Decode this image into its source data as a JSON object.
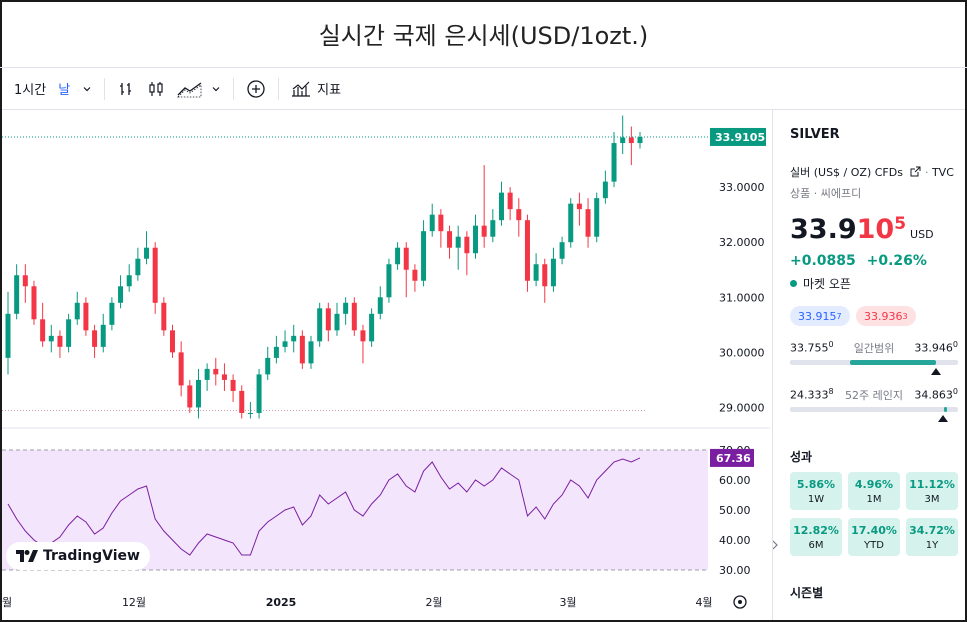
{
  "page_title": "실시간 국제 은시세(USD/1ozt.)",
  "toolbar": {
    "interval": "1시간",
    "timeframe": "날",
    "indicators_label": "지표"
  },
  "chart_labels": {
    "last_price_tag": "33.9105",
    "rsi_tag": "67.36",
    "x_ticks": [
      "월",
      "12월",
      "2025",
      "2월",
      "3월",
      "4월"
    ],
    "y_ticks": [
      "33.0000",
      "32.0000",
      "31.0000",
      "30.0000",
      "29.0000"
    ],
    "rsi_ticks": [
      "70.00",
      "60.00",
      "50.00",
      "40.00",
      "30.00"
    ],
    "watermark": "TradingView"
  },
  "colors": {
    "up": "#089981",
    "down": "#f23645",
    "rsi_line": "#7b1fa2",
    "rsi_band": "#f3e5fb",
    "accent": "#2962ff"
  },
  "chart_data": {
    "type": "candlestick",
    "ylim": [
      28.5,
      34.4
    ],
    "rsi_ylim": [
      28,
      72
    ],
    "candles": [
      [
        29.9,
        30.7,
        31.1,
        29.6
      ],
      [
        30.7,
        31.4,
        31.6,
        30.6
      ],
      [
        31.4,
        31.2,
        31.6,
        30.9
      ],
      [
        31.2,
        30.6,
        31.3,
        30.5
      ],
      [
        30.6,
        30.2,
        30.9,
        30.1
      ],
      [
        30.2,
        30.3,
        30.5,
        30.0
      ],
      [
        30.3,
        30.1,
        30.4,
        29.9
      ],
      [
        30.1,
        30.6,
        30.7,
        30.0
      ],
      [
        30.6,
        30.9,
        31.1,
        30.5
      ],
      [
        30.9,
        30.4,
        31.0,
        30.3
      ],
      [
        30.4,
        30.1,
        30.5,
        29.9
      ],
      [
        30.1,
        30.5,
        30.7,
        30.0
      ],
      [
        30.5,
        30.9,
        31.0,
        30.4
      ],
      [
        30.9,
        31.2,
        31.4,
        30.8
      ],
      [
        31.2,
        31.4,
        31.6,
        31.1
      ],
      [
        31.4,
        31.7,
        31.9,
        31.3
      ],
      [
        31.7,
        31.9,
        32.2,
        31.6
      ],
      [
        31.9,
        30.9,
        32.0,
        30.7
      ],
      [
        30.9,
        30.4,
        31.0,
        30.3
      ],
      [
        30.4,
        30.0,
        30.5,
        29.9
      ],
      [
        30.0,
        29.4,
        30.2,
        29.2
      ],
      [
        29.4,
        29.0,
        29.5,
        28.9
      ],
      [
        29.0,
        29.5,
        29.7,
        28.8
      ],
      [
        29.5,
        29.7,
        29.8,
        29.3
      ],
      [
        29.7,
        29.6,
        29.9,
        29.4
      ],
      [
        29.6,
        29.5,
        29.8,
        29.3
      ],
      [
        29.5,
        29.3,
        29.6,
        29.1
      ],
      [
        29.3,
        28.9,
        29.4,
        28.8
      ],
      [
        28.9,
        28.9,
        29.1,
        28.8
      ],
      [
        28.9,
        29.6,
        29.7,
        28.8
      ],
      [
        29.6,
        29.9,
        30.1,
        29.5
      ],
      [
        29.9,
        30.1,
        30.3,
        29.8
      ],
      [
        30.1,
        30.2,
        30.4,
        30.0
      ],
      [
        30.2,
        30.3,
        30.5,
        30.0
      ],
      [
        30.3,
        29.8,
        30.4,
        29.7
      ],
      [
        29.8,
        30.2,
        30.3,
        29.7
      ],
      [
        30.2,
        30.8,
        30.9,
        30.1
      ],
      [
        30.8,
        30.4,
        30.9,
        30.2
      ],
      [
        30.4,
        30.7,
        30.9,
        30.3
      ],
      [
        30.7,
        30.9,
        31.0,
        30.5
      ],
      [
        30.9,
        30.4,
        31.0,
        30.3
      ],
      [
        30.4,
        30.2,
        30.5,
        29.8
      ],
      [
        30.2,
        30.7,
        30.8,
        30.1
      ],
      [
        30.7,
        31.0,
        31.2,
        30.6
      ],
      [
        31.0,
        31.6,
        31.7,
        30.9
      ],
      [
        31.6,
        31.9,
        32.0,
        31.5
      ],
      [
        31.9,
        31.5,
        32.0,
        31.0
      ],
      [
        31.5,
        31.3,
        31.6,
        31.1
      ],
      [
        31.3,
        32.2,
        32.4,
        31.2
      ],
      [
        32.2,
        32.5,
        32.7,
        32.1
      ],
      [
        32.5,
        32.2,
        32.6,
        31.9
      ],
      [
        32.2,
        31.9,
        32.3,
        31.7
      ],
      [
        31.9,
        32.1,
        32.3,
        31.5
      ],
      [
        32.1,
        31.8,
        32.2,
        31.4
      ],
      [
        31.8,
        32.3,
        32.5,
        31.7
      ],
      [
        32.3,
        32.1,
        33.4,
        31.9
      ],
      [
        32.1,
        32.4,
        32.6,
        32.0
      ],
      [
        32.4,
        32.9,
        33.1,
        32.3
      ],
      [
        32.9,
        32.6,
        33.0,
        32.4
      ],
      [
        32.6,
        32.4,
        32.8,
        32.1
      ],
      [
        32.4,
        31.3,
        32.5,
        31.1
      ],
      [
        31.3,
        31.6,
        31.8,
        31.2
      ],
      [
        31.6,
        31.2,
        31.7,
        30.9
      ],
      [
        31.2,
        31.7,
        31.9,
        31.1
      ],
      [
        31.7,
        32.0,
        32.1,
        31.6
      ],
      [
        32.0,
        32.7,
        32.8,
        31.9
      ],
      [
        32.7,
        32.6,
        32.9,
        32.3
      ],
      [
        32.6,
        32.1,
        32.8,
        31.9
      ],
      [
        32.1,
        32.8,
        32.9,
        32.0
      ],
      [
        32.8,
        33.1,
        33.3,
        32.7
      ],
      [
        33.1,
        33.8,
        34.0,
        33.0
      ],
      [
        33.8,
        33.9,
        34.3,
        33.6
      ],
      [
        33.9,
        33.8,
        34.1,
        33.4
      ],
      [
        33.8,
        33.9105,
        34.0,
        33.7
      ]
    ],
    "rsi": [
      52,
      47,
      43,
      40,
      38,
      39,
      41,
      45,
      48,
      46,
      42,
      44,
      49,
      53,
      55,
      57,
      58,
      47,
      43,
      40,
      37,
      35,
      39,
      42,
      41,
      40,
      39,
      35,
      35,
      43,
      46,
      48,
      50,
      51,
      45,
      48,
      55,
      52,
      54,
      56,
      50,
      48,
      52,
      55,
      60,
      62,
      58,
      56,
      63,
      66,
      61,
      57,
      59,
      56,
      60,
      58,
      60,
      64,
      62,
      60,
      48,
      51,
      47,
      52,
      55,
      60,
      58,
      54,
      60,
      63,
      66,
      67,
      66,
      67.36
    ]
  },
  "panel": {
    "symbol": "SILVER",
    "desc_line1": "실버 (US$ / OZ) CFDs",
    "exchange": "TVC",
    "desc_line2": "상품 · 씨에프디",
    "price_main": "33.9",
    "price_red": "10",
    "price_sup": "5",
    "currency": "USD",
    "change_abs": "+0.0885",
    "change_pct": "+0.26%",
    "market_status": "마켓 오픈",
    "bid": "33.915",
    "bid_sup": "7",
    "ask": "33.936",
    "ask_sup": "3",
    "day_low": "33.755",
    "day_low_sup": "0",
    "day_label": "일간범위",
    "day_high": "33.946",
    "day_high_sup": "0",
    "day_position": 0.87,
    "y52_low": "24.333",
    "y52_low_sup": "8",
    "y52_label": "52주 레인지",
    "y52_high": "34.863",
    "y52_high_sup": "0",
    "y52_position": 0.91,
    "performance_title": "성과",
    "performance": [
      {
        "value": "5.86%",
        "period": "1W"
      },
      {
        "value": "4.96%",
        "period": "1M"
      },
      {
        "value": "11.12%",
        "period": "3M"
      },
      {
        "value": "12.82%",
        "period": "6M"
      },
      {
        "value": "17.40%",
        "period": "YTD"
      },
      {
        "value": "34.72%",
        "period": "1Y"
      }
    ],
    "seasonal_title": "시즌별"
  }
}
